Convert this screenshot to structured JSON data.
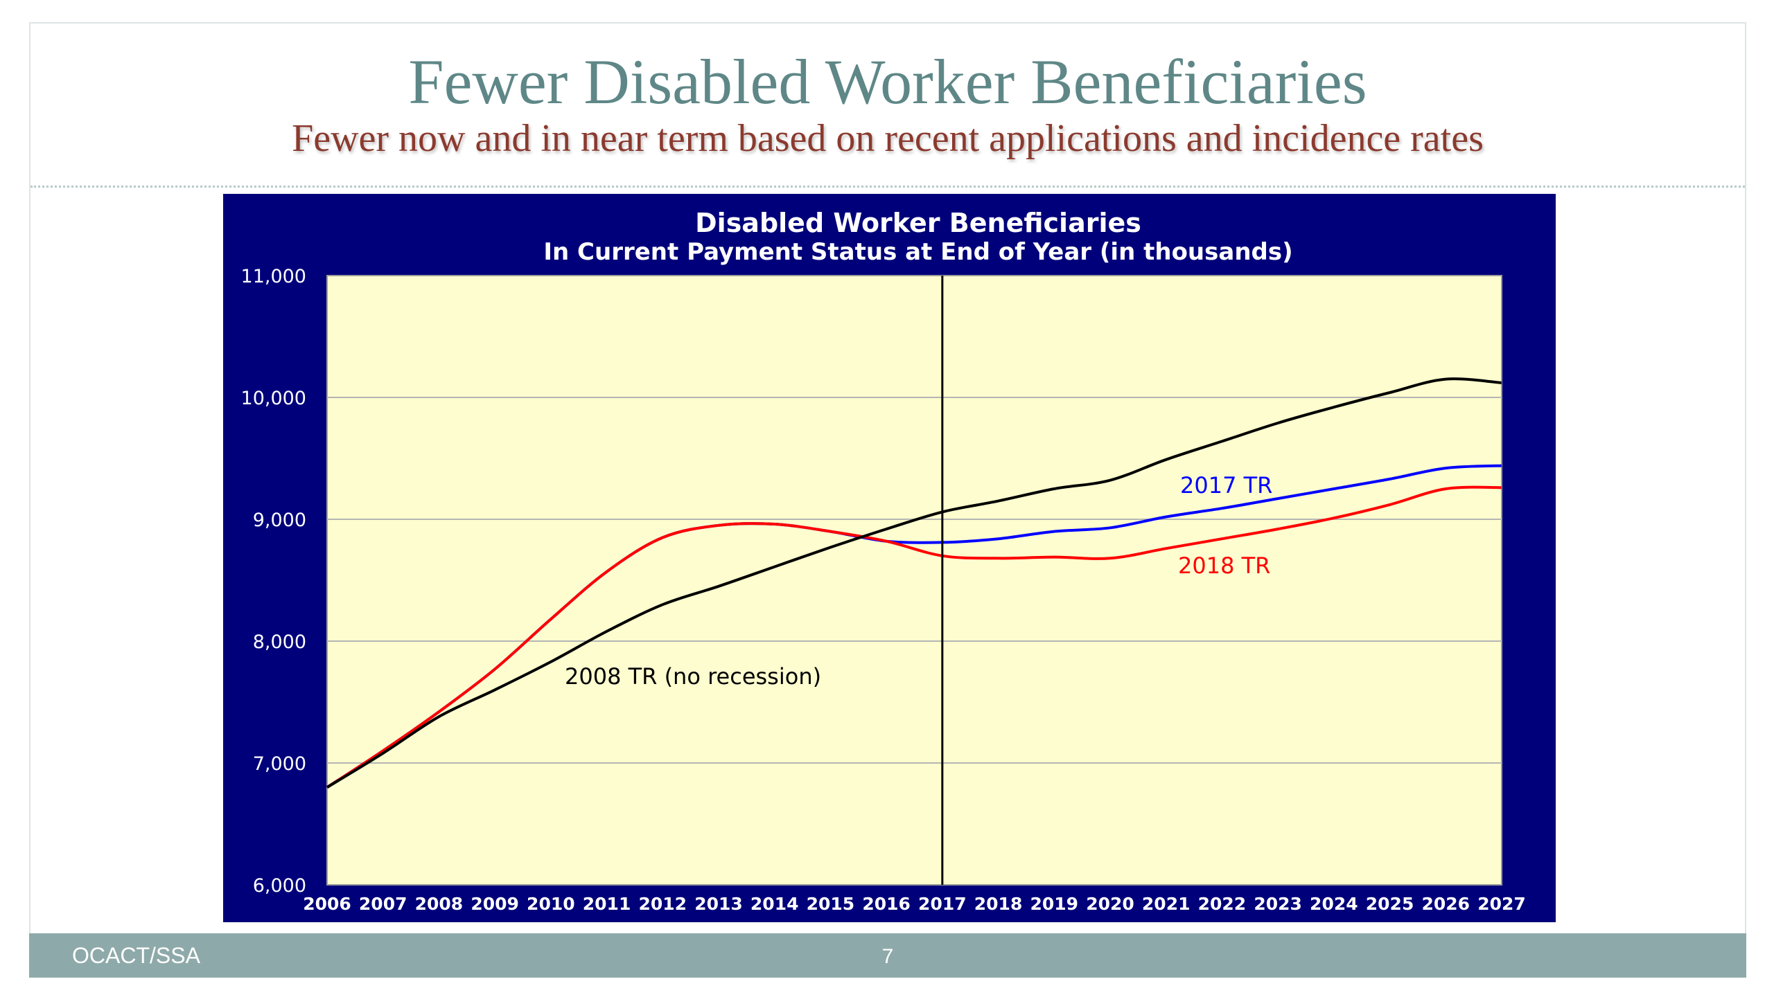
{
  "slide": {
    "title": "Fewer Disabled Worker Beneficiaries",
    "subtitle": "Fewer now and in near term based on recent applications and incidence rates",
    "footer_left": "OCACT/SSA",
    "page_number": "7"
  },
  "colors": {
    "title": "#5f8787",
    "subtitle": "#8b3a2e",
    "chart_frame": "#00007a",
    "plot_bg": "#fdfdcf",
    "footer": "#8ea9a9"
  },
  "chart_data": {
    "type": "line",
    "title": "Disabled Worker Beneficiaries",
    "subtitle": "In Current Payment Status at End of Year (in thousands)",
    "xlabel": "",
    "ylabel": "",
    "x": [
      "2006",
      "2007",
      "2008",
      "2009",
      "2010",
      "2011",
      "2012",
      "2013",
      "2014",
      "2015",
      "2016",
      "2017",
      "2018",
      "2019",
      "2020",
      "2021",
      "2022",
      "2023",
      "2024",
      "2025",
      "2026",
      "2027"
    ],
    "ylim": [
      6000,
      11000
    ],
    "y_ticks": [
      "6,000",
      "7,000",
      "8,000",
      "9,000",
      "10,000",
      "11,000"
    ],
    "grid": true,
    "vertical_marker_x": "2017",
    "series": [
      {
        "name": "2008 TR (no recession)",
        "color": "#000000",
        "values": [
          6800,
          7080,
          7380,
          7600,
          7830,
          8080,
          8300,
          8450,
          8610,
          8770,
          8920,
          9060,
          9150,
          9250,
          9320,
          9490,
          9640,
          9790,
          9920,
          10040,
          10150,
          10120
        ]
      },
      {
        "name": "2017 TR",
        "color": "#0000ff",
        "values": [
          6800,
          7100,
          7420,
          7770,
          8180,
          8570,
          8850,
          8950,
          8960,
          8900,
          8820,
          8810,
          8840,
          8900,
          8930,
          9020,
          9090,
          9170,
          9250,
          9330,
          9420,
          9440
        ]
      },
      {
        "name": "2018 TR",
        "color": "#ff0000",
        "values": [
          6800,
          7100,
          7420,
          7770,
          8180,
          8570,
          8850,
          8950,
          8960,
          8900,
          8820,
          8700,
          8680,
          8690,
          8680,
          8760,
          8840,
          8920,
          9010,
          9120,
          9250,
          9260
        ]
      }
    ]
  }
}
